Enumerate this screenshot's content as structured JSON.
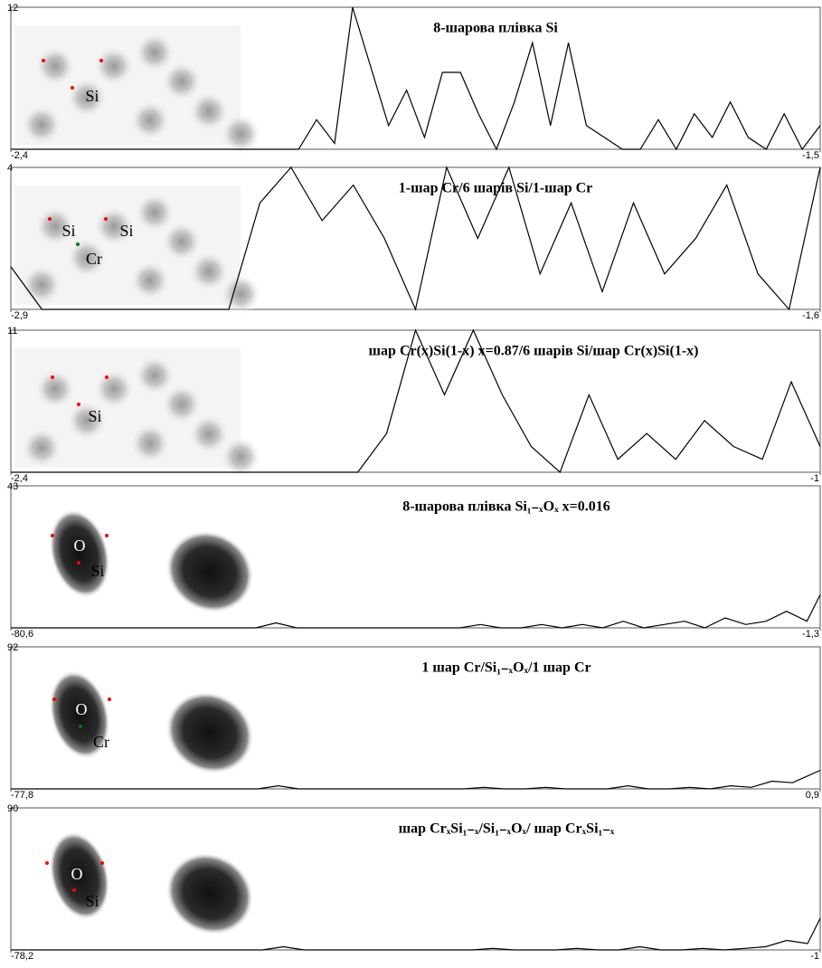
{
  "chart_data": [
    {
      "type": "line",
      "title": "8-шарова плівка Si",
      "annotations": [
        "Si"
      ],
      "color": "#000000",
      "xlim": [
        -2.4,
        -1.5
      ],
      "ylim": [
        0,
        12
      ],
      "yticks": [
        12
      ],
      "xticks": [
        {
          "value": -2.4,
          "label": "-2,4"
        },
        {
          "value": -1.5,
          "label": "-1,5"
        }
      ],
      "x": [
        -2.4,
        -2.38,
        -2.36,
        -2.34,
        -2.32,
        -2.3,
        -2.28,
        -2.26,
        -2.24,
        -2.22,
        -2.2,
        -2.18,
        -2.16,
        -2.14,
        -2.12,
        -2.1,
        -2.08,
        -2.06,
        -2.04,
        -2.02,
        -2,
        -1.98,
        -1.96,
        -1.94,
        -1.92,
        -1.9,
        -1.88,
        -1.86,
        -1.84,
        -1.82,
        -1.8,
        -1.78,
        -1.76,
        -1.74,
        -1.72,
        -1.7,
        -1.68,
        -1.66,
        -1.64,
        -1.62,
        -1.6,
        -1.58,
        -1.56,
        -1.54,
        -1.52,
        -1.5
      ],
      "values": [
        0,
        0,
        0,
        0,
        0,
        0,
        0,
        0,
        0,
        0,
        0,
        0,
        0,
        0,
        0,
        0,
        0,
        2.5,
        0.5,
        12,
        7,
        2,
        5,
        1,
        6.5,
        6.5,
        3,
        0,
        4,
        9,
        2,
        9,
        2,
        1,
        0,
        0,
        2.5,
        0,
        3,
        1,
        4,
        1,
        0,
        3,
        0,
        2
      ]
    },
    {
      "type": "line",
      "title": "1-шар Cr/6 шарів Si/1-шар Cr",
      "annotations": [
        "Si",
        "Si",
        "Cr"
      ],
      "color": "#000000",
      "xlim": [
        -2.9,
        -1.6
      ],
      "ylim": [
        0,
        4
      ],
      "yticks": [
        4
      ],
      "xticks": [
        {
          "value": -2.9,
          "label": "-2,9"
        },
        {
          "value": -1.6,
          "label": "-1,6"
        }
      ],
      "x": [
        -2.9,
        -2.85,
        -2.8,
        -2.75,
        -2.7,
        -2.65,
        -2.6,
        -2.55,
        -2.5,
        -2.45,
        -2.4,
        -2.35,
        -2.3,
        -2.25,
        -2.2,
        -2.15,
        -2.1,
        -2.05,
        -2,
        -1.95,
        -1.9,
        -1.85,
        -1.8,
        -1.75,
        -1.7,
        -1.65,
        -1.6
      ],
      "values": [
        1.2,
        0,
        0,
        0,
        0,
        0,
        0,
        0,
        3,
        4,
        2.5,
        3.5,
        2,
        0,
        4,
        2,
        4,
        1,
        3,
        0.5,
        3,
        1,
        2,
        3.5,
        1,
        0,
        4
      ]
    },
    {
      "type": "line",
      "title": "шар Cr(x)Si(1-x) x=0.87/6 шарів Si/шар Cr(x)Si(1-x)",
      "annotations": [
        "Si"
      ],
      "color": "#000000",
      "xlim": [
        -2.4,
        -1
      ],
      "ylim": [
        0,
        11
      ],
      "yticks": [
        11
      ],
      "xticks": [
        {
          "value": -2.4,
          "label": "-2,4"
        },
        {
          "value": -1,
          "label": "-1"
        }
      ],
      "x": [
        -2.4,
        -2.35,
        -2.3,
        -2.25,
        -2.2,
        -2.15,
        -2.1,
        -2.05,
        -2,
        -1.95,
        -1.9,
        -1.85,
        -1.8,
        -1.75,
        -1.7,
        -1.65,
        -1.6,
        -1.55,
        -1.5,
        -1.45,
        -1.4,
        -1.35,
        -1.3,
        -1.25,
        -1.2,
        -1.15,
        -1.1,
        -1.05,
        -1
      ],
      "values": [
        0,
        0,
        0,
        0,
        0,
        0,
        0,
        0,
        0,
        0,
        0,
        0,
        0,
        3,
        11,
        6,
        11,
        6,
        2,
        0,
        6,
        1,
        3,
        1,
        4,
        2,
        1,
        7,
        2
      ]
    },
    {
      "type": "line",
      "title": "8-шарова плівка Si₁₋ₓOₓ x=0.016",
      "annotations": [
        "O",
        "Si"
      ],
      "color": "#000000",
      "xlim": [
        -80.6,
        -1.3
      ],
      "ylim": [
        0,
        43
      ],
      "yticks": [
        43
      ],
      "xticks": [
        {
          "value": -80.6,
          "label": "-80,6"
        },
        {
          "value": -1.3,
          "label": "-1,3"
        }
      ],
      "x": [
        -80.6,
        -78.6,
        -76.6,
        -74.6,
        -72.6,
        -70.6,
        -68.6,
        -66.6,
        -64.6,
        -62.6,
        -60.6,
        -58.6,
        -56.6,
        -54.6,
        -52.6,
        -50.6,
        -48.6,
        -46.6,
        -44.6,
        -42.6,
        -40.6,
        -38.6,
        -36.6,
        -34.6,
        -32.6,
        -30.6,
        -28.6,
        -26.6,
        -24.6,
        -22.6,
        -20.6,
        -18.6,
        -16.6,
        -14.6,
        -12.6,
        -10.6,
        -8.6,
        -6.6,
        -4.6,
        -2.6,
        -1.3
      ],
      "values": [
        0,
        0,
        0,
        0,
        0,
        0,
        0,
        0,
        0,
        0,
        0,
        0,
        0,
        1.5,
        0,
        0,
        0,
        0,
        0,
        0,
        0,
        0,
        0,
        1,
        0,
        0,
        1,
        0,
        1,
        0,
        2,
        0,
        1,
        2,
        0,
        3,
        1,
        2,
        5,
        2,
        10
      ]
    },
    {
      "type": "line",
      "title": "1 шар Cr/Si₁₋ₓOₓ/1 шар Cr",
      "annotations": [
        "O",
        "Cr"
      ],
      "color": "#000000",
      "xlim": [
        -77.8,
        0.9
      ],
      "ylim": [
        0,
        92
      ],
      "yticks": [
        92
      ],
      "xticks": [
        {
          "value": -77.8,
          "label": "-77,8"
        },
        {
          "value": 0.9,
          "label": "0,9"
        }
      ],
      "x": [
        -77.8,
        -75.8,
        -73.8,
        -71.8,
        -69.8,
        -67.8,
        -65.8,
        -63.8,
        -61.8,
        -59.8,
        -57.8,
        -55.8,
        -53.8,
        -51.8,
        -49.8,
        -47.8,
        -45.8,
        -43.8,
        -41.8,
        -39.8,
        -37.8,
        -35.8,
        -33.8,
        -31.8,
        -29.8,
        -27.8,
        -25.8,
        -23.8,
        -21.8,
        -19.8,
        -17.8,
        -15.8,
        -13.8,
        -11.8,
        -9.8,
        -7.8,
        -5.8,
        -3.8,
        -1.8,
        0.9
      ],
      "values": [
        0,
        0,
        0,
        0,
        0,
        0,
        0,
        0,
        0,
        0,
        0,
        0,
        0,
        2,
        0,
        0,
        0,
        0,
        0,
        0,
        0,
        0,
        0,
        1,
        0,
        0,
        1,
        0,
        0,
        0,
        2,
        0,
        0,
        1,
        0,
        2,
        1,
        5,
        4,
        12
      ]
    },
    {
      "type": "line",
      "title": "шар CrₓSi₁₋ₓ/Si₁₋ₓOₓ/ шар CrₓSi₁₋ₓ",
      "annotations": [
        "O",
        "Si"
      ],
      "color": "#000000",
      "xlim": [
        -78.2,
        -1
      ],
      "ylim": [
        0,
        90
      ],
      "yticks": [
        90
      ],
      "xticks": [
        {
          "value": -78.2,
          "label": "-78,2"
        },
        {
          "value": -1,
          "label": "-1"
        }
      ],
      "x": [
        -78.2,
        -76.2,
        -74.2,
        -72.2,
        -70.2,
        -68.2,
        -66.2,
        -64.2,
        -62.2,
        -60.2,
        -58.2,
        -56.2,
        -54.2,
        -52.2,
        -50.2,
        -48.2,
        -46.2,
        -44.2,
        -42.2,
        -40.2,
        -38.2,
        -36.2,
        -34.2,
        -32.2,
        -30.2,
        -28.2,
        -26.2,
        -24.2,
        -22.2,
        -20.2,
        -18.2,
        -16.2,
        -14.2,
        -12.2,
        -10.2,
        -8.2,
        -6.2,
        -4.2,
        -2.2,
        -1
      ],
      "values": [
        0,
        0,
        0,
        0,
        0,
        0,
        0,
        0,
        0,
        0,
        0,
        0,
        0,
        2,
        0,
        0,
        0,
        0,
        0,
        0,
        0,
        0,
        0,
        1,
        0,
        0,
        0,
        1,
        0,
        0,
        2,
        0,
        0,
        1,
        0,
        1,
        2,
        6,
        4,
        20
      ]
    }
  ]
}
